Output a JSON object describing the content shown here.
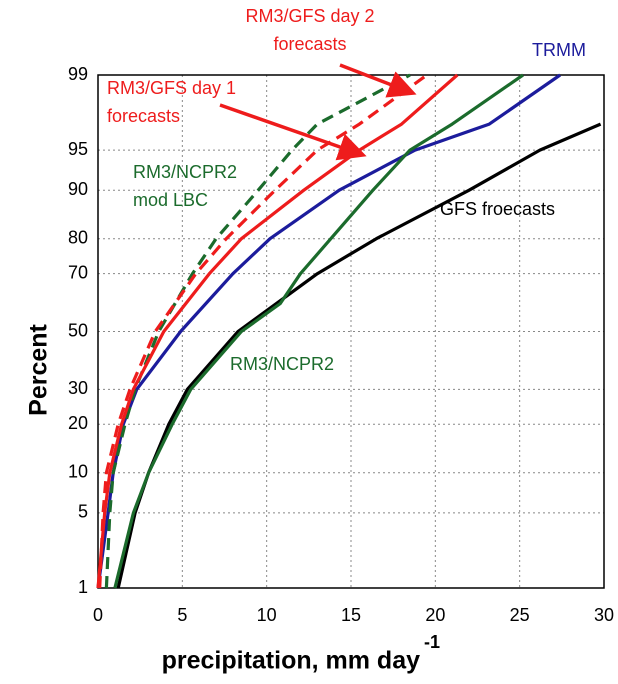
{
  "chart_data": {
    "type": "line",
    "yscale": "probability",
    "grid": true,
    "xlabel": "precipitation, mm day",
    "xlabel_exponent": "-1",
    "ylabel": "Percent",
    "xlim": [
      0,
      30
    ],
    "xticks": [
      0,
      5,
      10,
      15,
      20,
      25,
      30
    ],
    "ylim": [
      1,
      99
    ],
    "yticks": [
      1,
      5,
      10,
      20,
      30,
      50,
      70,
      80,
      90,
      95,
      99
    ],
    "series": [
      {
        "name": "TRMM",
        "color": "#1c1c9c",
        "dashed": false,
        "x": [
          0,
          0.6,
          0.9,
          1.5,
          2.3,
          4.9,
          8,
          10.2,
          14.3,
          18.8,
          23.2,
          27.4
        ],
        "values": [
          1,
          5,
          10,
          20,
          30,
          50,
          70,
          80,
          90,
          95,
          97,
          99
        ]
      },
      {
        "name": "GFS froecasts",
        "color": "#000000",
        "dashed": false,
        "x": [
          1.2,
          2.2,
          3,
          4.2,
          5.3,
          8.3,
          13,
          16.5,
          22,
          26.2,
          29.8
        ],
        "values": [
          1,
          5,
          10,
          20,
          30,
          50,
          70,
          80,
          90,
          95,
          97
        ]
      },
      {
        "name": "RM3/NCPR2",
        "color": "#1b6b2c",
        "dashed": false,
        "x": [
          1,
          2.1,
          3,
          4.4,
          5.5,
          8.5,
          10.8,
          12,
          13.8,
          16.3,
          18.5,
          21,
          25.2
        ],
        "values": [
          1,
          5,
          10,
          20,
          30,
          50,
          60,
          70,
          80,
          90,
          95,
          97,
          99
        ]
      },
      {
        "name": "RM3/NCPR2 mod LBC",
        "color": "#1b6b2c",
        "dashed": true,
        "x": [
          0.5,
          0.7,
          0.9,
          1.6,
          2.2,
          3.6,
          5.6,
          7,
          9.5,
          11.5,
          13,
          18.5
        ],
        "values": [
          1,
          5,
          10,
          20,
          30,
          50,
          70,
          80,
          90,
          95,
          97,
          99
        ]
      },
      {
        "name": "RM3/GFS day 1 forecasts",
        "color": "#ee1c1c",
        "dashed": false,
        "x": [
          0,
          0.4,
          0.7,
          1.4,
          2.1,
          3.9,
          6.6,
          8.5,
          12.2,
          15.5,
          18,
          21.3
        ],
        "values": [
          1,
          5,
          10,
          20,
          30,
          50,
          70,
          80,
          90,
          95,
          97,
          99
        ]
      },
      {
        "name": "RM3/GFS day 2 forecasts",
        "color": "#ee1c1c",
        "dashed": true,
        "x": [
          0.1,
          0.3,
          0.5,
          1.2,
          1.9,
          3.4,
          5.8,
          7.6,
          10.5,
          13,
          15.5,
          19.5
        ],
        "values": [
          1,
          5,
          10,
          20,
          30,
          50,
          70,
          80,
          90,
          95,
          97,
          99
        ]
      }
    ]
  }
}
